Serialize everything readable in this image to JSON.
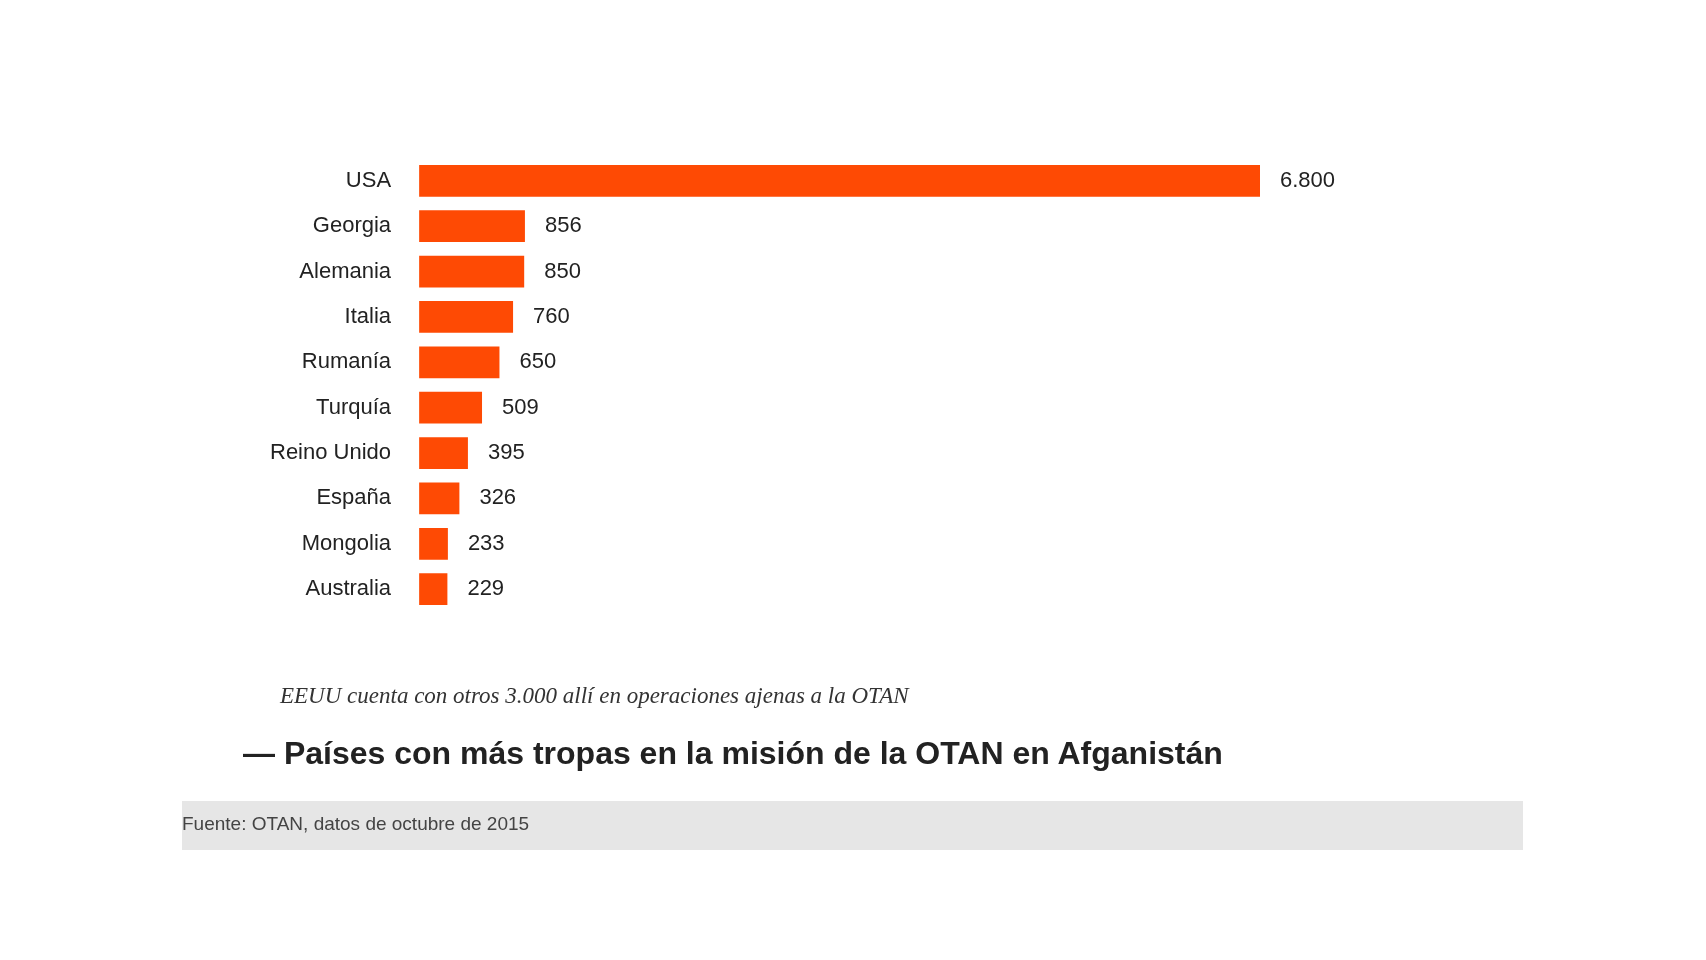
{
  "chart_data": {
    "type": "bar",
    "orientation": "horizontal",
    "title": "— Países con más tropas en la misión de la OTAN en Afganistán",
    "categories": [
      "USA",
      "Georgia",
      "Alemania",
      "Italia",
      "Rumanía",
      "Turquía",
      "Reino Unido",
      "España",
      "Mongolia",
      "Australia"
    ],
    "values": [
      6800,
      856,
      850,
      760,
      650,
      509,
      395,
      326,
      233,
      229
    ],
    "value_labels": [
      "6.800",
      "856",
      "850",
      "760",
      "650",
      "509",
      "395",
      "326",
      "233",
      "229"
    ],
    "color": "#fe4a04",
    "annotations": [
      "EEUU cuenta con otros 3.000 allí en operaciones ajenas a la OTAN",
      "Fuente: OTAN, datos de octubre de 2015"
    ]
  }
}
